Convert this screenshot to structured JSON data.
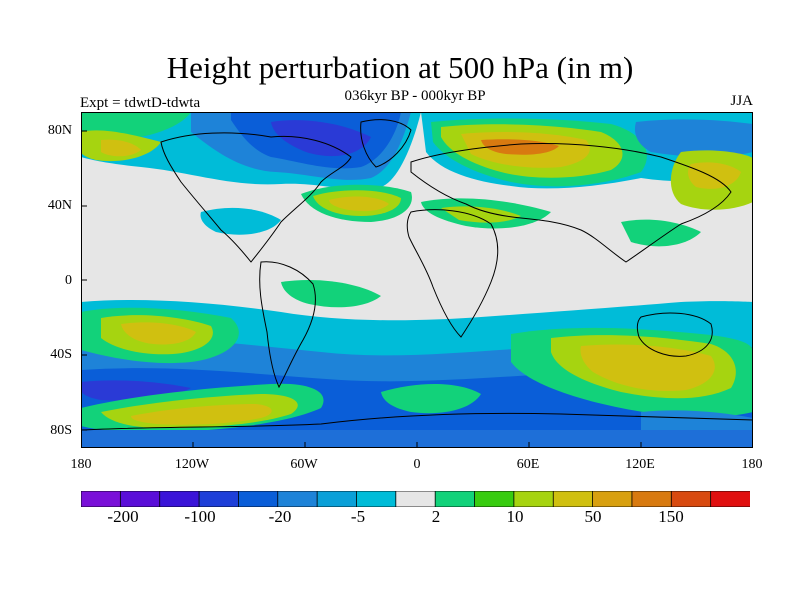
{
  "title": "Height perturbation at 500 hPa (in m)",
  "subtitle": "036kyr BP - 000kyr BP",
  "experiment": "Expt = tdwtD-tdwta",
  "season": "JJA",
  "lat_ticks": [
    "80N",
    "40N",
    "0",
    "40S",
    "80S"
  ],
  "lon_ticks": [
    "180",
    "120W",
    "60W",
    "0",
    "60E",
    "120E",
    "180"
  ],
  "colorbar": {
    "labels": [
      "-200",
      "-100",
      "-20",
      "-5",
      "2",
      "10",
      "50",
      "150"
    ],
    "colors": [
      "#7a10d8",
      "#5a0ed8",
      "#3a14d8",
      "#1e3fd8",
      "#0a5ed8",
      "#1e83d8",
      "#0aa0d8",
      "#00bcd8",
      "#e6e6e6",
      "#12d27a",
      "#38cc10",
      "#a6d410",
      "#d0c010",
      "#d8a010",
      "#d87a10",
      "#d84a10",
      "#e01010"
    ]
  },
  "field_colors": {
    "deep_neg": "#2a3ad6",
    "neg": "#1e6fd8",
    "mid_neg": "#0aa0d8",
    "weak_neg": "#00bcd8",
    "neutral": "#e6e6e6",
    "weak_pos": "#12d27a",
    "pos": "#38cc10",
    "mid_pos": "#a6d410",
    "high_pos": "#d0c010",
    "peak_pos": "#d87a10"
  }
}
